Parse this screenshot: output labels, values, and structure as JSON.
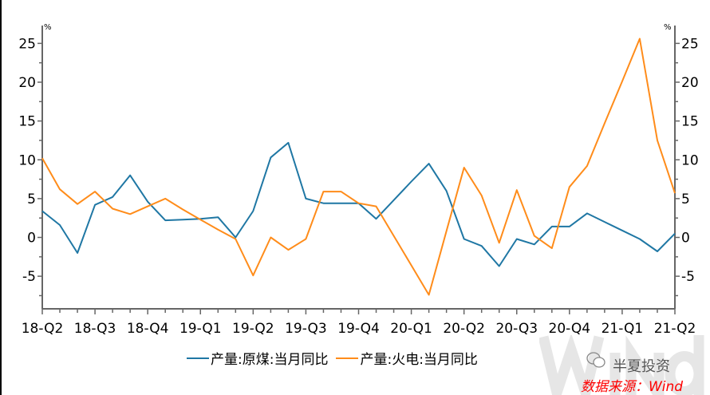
{
  "chart_data": {
    "type": "line",
    "x": [
      "2018-04",
      "2018-05",
      "2018-06",
      "2018-07",
      "2018-08",
      "2018-09",
      "2018-10",
      "2018-11",
      "2018-12",
      "2019-01",
      "2019-02",
      "2019-03",
      "2019-04",
      "2019-05",
      "2019-06",
      "2019-07",
      "2019-08",
      "2019-09",
      "2019-10",
      "2019-11",
      "2019-12",
      "2020-01",
      "2020-02",
      "2020-03",
      "2020-04",
      "2020-05",
      "2020-06",
      "2020-07",
      "2020-08",
      "2020-09",
      "2020-10",
      "2020-11",
      "2020-12",
      "2021-01",
      "2021-02",
      "2021-03",
      "2021-04"
    ],
    "x_tick_labels": [
      "18-Q2",
      "18-Q3",
      "18-Q4",
      "19-Q1",
      "19-Q2",
      "19-Q3",
      "19-Q4",
      "20-Q1",
      "20-Q2",
      "20-Q3",
      "20-Q4",
      "21-Q1",
      "21-Q2"
    ],
    "series": [
      {
        "name": "产量:原煤:当月同比",
        "color": "#1f77a4",
        "values": [
          3.4,
          1.6,
          -2.0,
          4.2,
          5.2,
          8.0,
          4.6,
          2.2,
          2.3,
          2.4,
          2.6,
          0.0,
          3.4,
          10.3,
          12.2,
          5.0,
          4.4,
          4.4,
          4.4,
          2.4,
          4.8,
          7.2,
          9.5,
          6.0,
          -0.2,
          -1.1,
          -3.7,
          -0.2,
          -0.9,
          1.4,
          1.4,
          3.1,
          2.0,
          0.9,
          -0.2,
          -1.8,
          0.5
        ]
      },
      {
        "name": "产量:火电:当月同比",
        "color": "#ff8c1a",
        "values": [
          10.2,
          6.2,
          4.3,
          5.9,
          3.7,
          3.0,
          4.0,
          5.0,
          3.6,
          2.3,
          1.0,
          -0.2,
          -4.9,
          0.0,
          -1.6,
          -0.2,
          5.9,
          5.9,
          4.4,
          4.0,
          0.2,
          -3.6,
          -7.4,
          0.8,
          9.0,
          5.4,
          -0.7,
          6.1,
          0.2,
          -1.4,
          6.5,
          9.2,
          14.7,
          20.1,
          25.6,
          12.5,
          5.7
        ]
      }
    ],
    "y_ticks": [
      -5,
      0,
      5,
      10,
      15,
      20,
      25
    ],
    "ylim": [
      -9.2,
      27.3
    ],
    "y_unit_left": "%",
    "y_unit_right": "%",
    "grid": false,
    "legend_position": "bottom"
  },
  "legend": {
    "items": [
      "产量:原煤:当月同比",
      "产量:火电:当月同比"
    ]
  },
  "watermark": "Wind",
  "brand": "半夏投资",
  "source": "数据来源：Wind"
}
